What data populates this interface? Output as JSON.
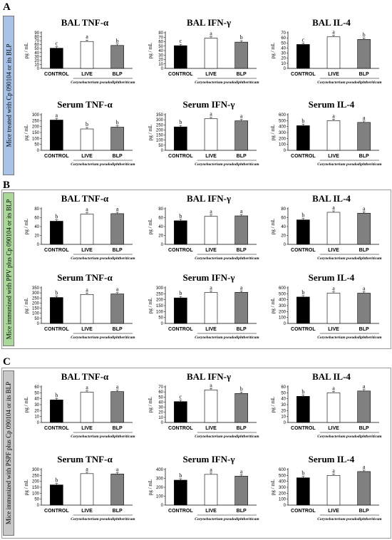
{
  "panels": [
    {
      "letter": "A",
      "side_label": "Mice treated with Cp 090104 or its BLP",
      "side_color": "#a9c3e8",
      "box": false,
      "chart_data": [
        {
          "type": "bar",
          "title": "BAL TNF-α",
          "ylabel": "pg / mL",
          "ylim": [
            0,
            90
          ],
          "yticks": [
            0,
            10,
            20,
            30,
            40,
            50,
            60,
            70,
            80,
            90
          ],
          "categories": [
            "CONTROL",
            "LIVE",
            "BLP"
          ],
          "values": [
            51,
            68,
            58
          ],
          "letters": [
            "c",
            "a",
            "b"
          ],
          "group_label": "Corynebacterium pseudodiphtheriticum"
        },
        {
          "type": "bar",
          "title": "BAL IFN-γ",
          "ylabel": "pg / mL",
          "ylim": [
            0,
            80
          ],
          "yticks": [
            0,
            10,
            20,
            30,
            40,
            50,
            60,
            70,
            80
          ],
          "categories": [
            "CONTROL",
            "LIVE",
            "BLP"
          ],
          "values": [
            51,
            68,
            59
          ],
          "letters": [
            "c",
            "a",
            "b"
          ],
          "group_label": "Corynebacterium pseudodiphtheriticum"
        },
        {
          "type": "bar",
          "title": "BAL IL-4",
          "ylabel": "pg / mL",
          "ylim": [
            0,
            70
          ],
          "yticks": [
            0,
            10,
            20,
            30,
            40,
            50,
            60,
            70
          ],
          "categories": [
            "CONTROL",
            "LIVE",
            "BLP"
          ],
          "values": [
            47,
            62,
            57
          ],
          "letters": [
            "c",
            "a",
            "b"
          ],
          "group_label": "Corynebacterium pseudodiphtheriticum"
        },
        {
          "type": "bar",
          "title": "Serum TNF-α",
          "ylabel": "pg / mL",
          "ylim": [
            0,
            300
          ],
          "yticks": [
            0,
            50,
            100,
            150,
            200,
            250,
            300
          ],
          "categories": [
            "CONTROL",
            "LIVE",
            "BLP"
          ],
          "values": [
            255,
            180,
            195
          ],
          "letters": [
            "a",
            "b",
            "b"
          ],
          "group_label": "Corynebacterium pseudodiphtheriticum"
        },
        {
          "type": "bar",
          "title": "Serum IFN-γ",
          "ylabel": "pg / mL",
          "ylim": [
            0,
            350
          ],
          "yticks": [
            0,
            50,
            100,
            150,
            200,
            250,
            300,
            350
          ],
          "categories": [
            "CONTROL",
            "LIVE",
            "BLP"
          ],
          "values": [
            230,
            310,
            290
          ],
          "letters": [
            "b",
            "a",
            "a"
          ],
          "group_label": "Corynebacterium pseudodiphtheriticum"
        },
        {
          "type": "bar",
          "title": "Serum IL-4",
          "ylabel": "pg / mL",
          "ylim": [
            0,
            600
          ],
          "yticks": [
            0,
            100,
            200,
            300,
            400,
            500,
            600
          ],
          "categories": [
            "CONTROL",
            "LIVE",
            "BLP"
          ],
          "values": [
            415,
            500,
            470
          ],
          "letters": [
            "b",
            "a",
            "a"
          ],
          "group_label": "Corynebacterium pseudodiphtheriticum"
        }
      ]
    },
    {
      "letter": "B",
      "side_label": "Mice immunized with PPV plus Cp 090104 or its BLP",
      "side_color": "#a9d89a",
      "box": true,
      "chart_data": [
        {
          "type": "bar",
          "title": "BAL TNF-α",
          "ylabel": "pg / mL",
          "ylim": [
            0,
            80
          ],
          "yticks": [
            0,
            20,
            40,
            60,
            80
          ],
          "categories": [
            "CONTROL",
            "LIVE",
            "BLP"
          ],
          "values": [
            52,
            68,
            69
          ],
          "letters": [
            "b",
            "a",
            "a"
          ],
          "group_label": "Corynebacterium pseudodiphtheriticum"
        },
        {
          "type": "bar",
          "title": "BAL IFN-γ",
          "ylabel": "pg / mL",
          "ylim": [
            0,
            80
          ],
          "yticks": [
            0,
            20,
            40,
            60,
            80
          ],
          "categories": [
            "CONTROL",
            "LIVE",
            "BLP"
          ],
          "values": [
            53,
            63,
            64
          ],
          "letters": [
            "b",
            "a",
            "a"
          ],
          "group_label": "Corynebacterium pseudodiphtheriticum"
        },
        {
          "type": "bar",
          "title": "BAL IL-4",
          "ylabel": "pg / mL",
          "ylim": [
            0,
            80
          ],
          "yticks": [
            0,
            20,
            40,
            60,
            80
          ],
          "categories": [
            "CONTROL",
            "LIVE",
            "BLP"
          ],
          "values": [
            55,
            72,
            70
          ],
          "letters": [
            "b",
            "a",
            "a"
          ],
          "group_label": "Corynebacterium pseudodiphtheriticum"
        },
        {
          "type": "bar",
          "title": "Serum TNF-α",
          "ylabel": "pg / mL",
          "ylim": [
            0,
            350
          ],
          "yticks": [
            0,
            50,
            100,
            150,
            200,
            250,
            300,
            350
          ],
          "categories": [
            "CONTROL",
            "LIVE",
            "BLP"
          ],
          "values": [
            255,
            285,
            290
          ],
          "letters": [
            "b",
            "a",
            "a"
          ],
          "group_label": "Corynebacterium pseudodiphtheriticum"
        },
        {
          "type": "bar",
          "title": "Serum IFN-γ",
          "ylabel": "pg / mL",
          "ylim": [
            0,
            300
          ],
          "yticks": [
            0,
            50,
            100,
            150,
            200,
            250,
            300
          ],
          "categories": [
            "CONTROL",
            "LIVE",
            "BLP"
          ],
          "values": [
            215,
            260,
            262
          ],
          "letters": [
            "b",
            "a",
            "a"
          ],
          "group_label": "Corynebacterium pseudodiphtheriticum"
        },
        {
          "type": "bar",
          "title": "Serum IL-4",
          "ylabel": "pg / mL",
          "ylim": [
            0,
            600
          ],
          "yticks": [
            0,
            100,
            200,
            300,
            400,
            500,
            600
          ],
          "categories": [
            "CONTROL",
            "LIVE",
            "BLP"
          ],
          "values": [
            445,
            510,
            510
          ],
          "letters": [
            "b",
            "a",
            "a"
          ],
          "group_label": "Corynebacterium pseudodiphtheriticum"
        }
      ]
    },
    {
      "letter": "C",
      "side_label": "Mice immunized with PSPF plus Cp 090104 or its BLP",
      "side_color": "#c8c8c8",
      "box": true,
      "chart_data": [
        {
          "type": "bar",
          "title": "BAL TNF-α",
          "ylabel": "pg / mL",
          "ylim": [
            0,
            60
          ],
          "yticks": [
            0,
            10,
            20,
            30,
            40,
            50,
            60
          ],
          "categories": [
            "CONTROL",
            "LIVE",
            "BLP"
          ],
          "values": [
            38,
            51,
            52
          ],
          "letters": [
            "b",
            "a",
            "a"
          ],
          "group_label": "Corynebacterium pseudodiphtheriticum"
        },
        {
          "type": "bar",
          "title": "BAL IFN-γ",
          "ylabel": "pg / mL",
          "ylim": [
            0,
            70
          ],
          "yticks": [
            0,
            10,
            20,
            30,
            40,
            50,
            60,
            70
          ],
          "categories": [
            "CONTROL",
            "LIVE",
            "BLP"
          ],
          "values": [
            41,
            64,
            57
          ],
          "letters": [
            "c",
            "a",
            "b"
          ],
          "group_label": "Corynebacterium pseudodiphtheriticum"
        },
        {
          "type": "bar",
          "title": "BAL IL-4",
          "ylabel": "pg / mL",
          "ylim": [
            0,
            60
          ],
          "yticks": [
            0,
            10,
            20,
            30,
            40,
            50,
            60
          ],
          "categories": [
            "CONTROL",
            "LIVE",
            "BLP"
          ],
          "values": [
            44,
            50,
            53
          ],
          "letters": [
            "b",
            "a",
            "a"
          ],
          "group_label": "Corynebacterium pseudodiphtheriticum"
        },
        {
          "type": "bar",
          "title": "Serum TNF-α",
          "ylabel": "pg / mL",
          "ylim": [
            0,
            300
          ],
          "yticks": [
            0,
            50,
            100,
            150,
            200,
            250,
            300
          ],
          "categories": [
            "CONTROL",
            "LIVE",
            "BLP"
          ],
          "values": [
            170,
            265,
            262
          ],
          "letters": [
            "b",
            "a",
            "a"
          ],
          "group_label": "Corynebacterium pseudodiphtheriticum"
        },
        {
          "type": "bar",
          "title": "Serum IFN-γ",
          "ylabel": "pg / mL",
          "ylim": [
            0,
            400
          ],
          "yticks": [
            0,
            100,
            200,
            300,
            400
          ],
          "categories": [
            "CONTROL",
            "LIVE",
            "BLP"
          ],
          "values": [
            280,
            345,
            325
          ],
          "letters": [
            "b",
            "a",
            "a"
          ],
          "group_label": "Corynebacterium pseudodiphtheriticum"
        },
        {
          "type": "bar",
          "title": "Serum IL-4",
          "ylabel": "pg / mL",
          "ylim": [
            0,
            600
          ],
          "yticks": [
            0,
            100,
            200,
            300,
            400,
            500,
            600
          ],
          "categories": [
            "CONTROL",
            "LIVE",
            "BLP"
          ],
          "values": [
            460,
            500,
            565
          ],
          "letters": [
            "b",
            "a",
            "a"
          ],
          "group_label": "Corynebacterium pseudodiphtheriticum"
        }
      ]
    }
  ],
  "bar_fills": [
    "#000000",
    "#ffffff",
    "#808080"
  ]
}
